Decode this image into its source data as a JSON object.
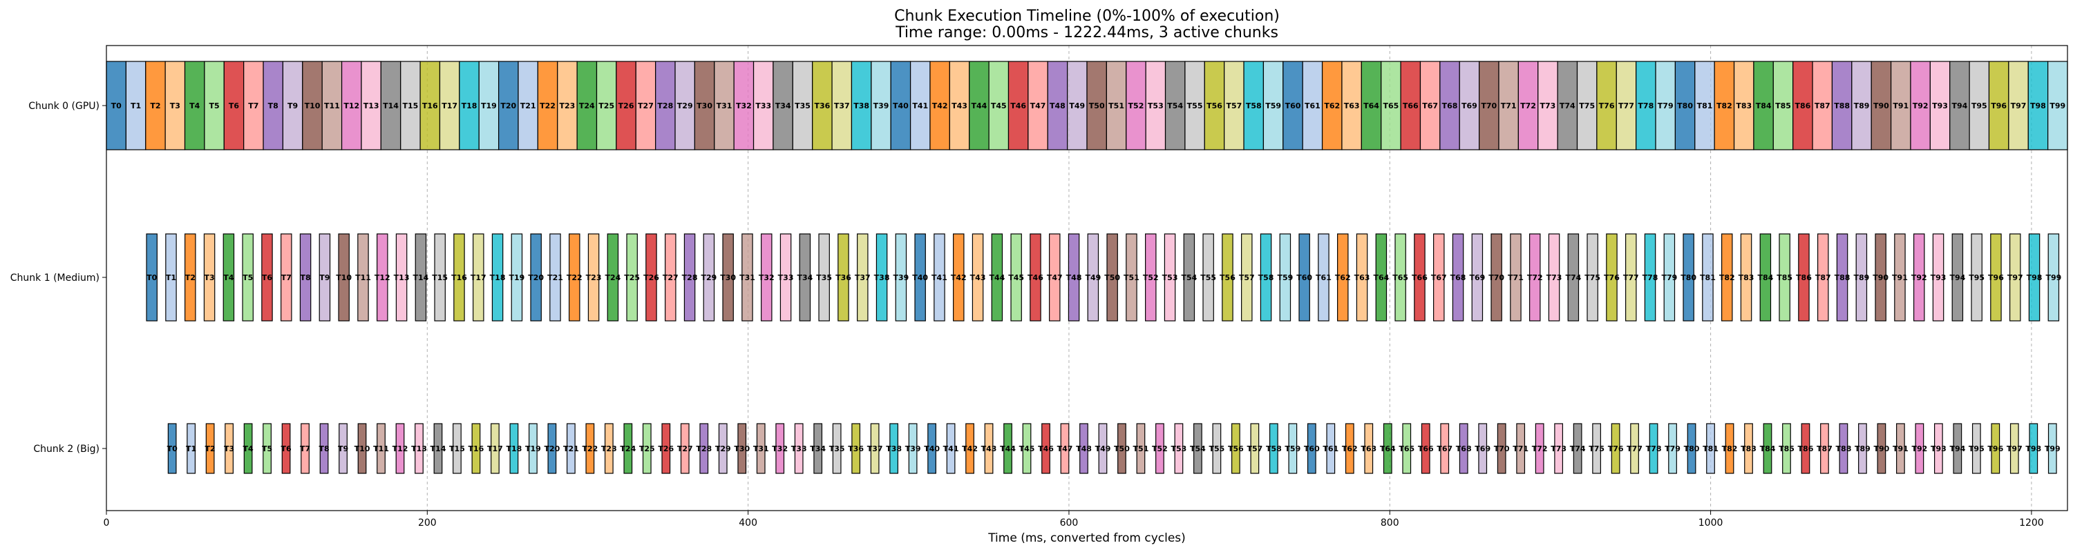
{
  "chart_data": {
    "type": "bar",
    "subtype": "gantt-timeline",
    "title": "Chunk Execution Timeline (0%-100% of execution)",
    "subtitle": "Time range: 0.00ms - 1222.44ms, 3 active chunks",
    "xlabel": "Time (ms, converted from cycles)",
    "ylabel": "",
    "xlim": [
      0,
      1222.44
    ],
    "xticks": [
      0,
      200,
      400,
      600,
      800,
      1000,
      1200
    ],
    "grid": "vertical dashed",
    "legend": "none",
    "palette": [
      "#1f77b4",
      "#aec7e8",
      "#ff7f0e",
      "#ffbb78",
      "#2ca02c",
      "#98df8a",
      "#d62728",
      "#ff9896",
      "#9467bd",
      "#c5b0d5",
      "#8c564b",
      "#c49c94",
      "#e377c2",
      "#f7b6d2",
      "#7f7f7f",
      "#c7c7c7",
      "#bcbd22",
      "#dbdb8d",
      "#17becf",
      "#9edae5"
    ],
    "categories": [
      "Chunk 0 (GPU)",
      "Chunk 1 (Medium)",
      "Chunk 2 (Big)"
    ],
    "series": [
      {
        "name": "Chunk 0 (GPU)",
        "task_count": 100,
        "start": 0.0,
        "end": 1222.44,
        "duty": 1.0
      },
      {
        "name": "Chunk 1 (Medium)",
        "task_count": 100,
        "start": 25.0,
        "end": 1222.44,
        "duty": 0.55
      },
      {
        "name": "Chunk 2 (Big)",
        "task_count": 100,
        "start": 38.5,
        "end": 1222.44,
        "duty": 0.42
      }
    ]
  }
}
